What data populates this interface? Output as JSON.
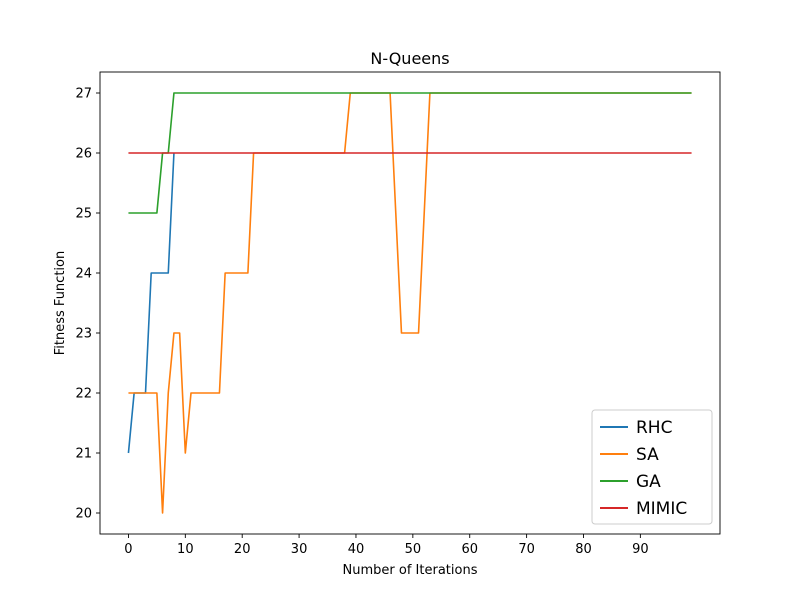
{
  "chart_data": {
    "type": "line",
    "title": "N-Queens",
    "xlabel": "Number of Iterations",
    "ylabel": "Fitness Function",
    "xlim": [
      -5,
      104
    ],
    "ylim": [
      19.65,
      27.35
    ],
    "xticks": [
      0,
      10,
      20,
      30,
      40,
      50,
      60,
      70,
      80,
      90
    ],
    "yticks": [
      20,
      21,
      22,
      23,
      24,
      25,
      26,
      27
    ],
    "grid": false,
    "legend_position": "lower-right",
    "series": [
      {
        "name": "RHC",
        "color": "#1f77b4",
        "points": [
          [
            0,
            21
          ],
          [
            1,
            22
          ],
          [
            2,
            22
          ],
          [
            3,
            22
          ],
          [
            4,
            24
          ],
          [
            5,
            24
          ],
          [
            6,
            24
          ],
          [
            7,
            24
          ],
          [
            8,
            26
          ]
        ]
      },
      {
        "name": "SA",
        "color": "#ff7f0e",
        "points": [
          [
            0,
            22
          ],
          [
            1,
            22
          ],
          [
            2,
            22
          ],
          [
            3,
            22
          ],
          [
            4,
            22
          ],
          [
            5,
            22
          ],
          [
            6,
            20
          ],
          [
            7,
            22
          ],
          [
            8,
            23
          ],
          [
            9,
            23
          ],
          [
            10,
            21
          ],
          [
            11,
            22
          ],
          [
            12,
            22
          ],
          [
            13,
            22
          ],
          [
            14,
            22
          ],
          [
            15,
            22
          ],
          [
            16,
            22
          ],
          [
            17,
            24
          ],
          [
            18,
            24
          ],
          [
            19,
            24
          ],
          [
            20,
            24
          ],
          [
            21,
            24
          ],
          [
            22,
            26
          ],
          [
            23,
            26
          ],
          [
            24,
            26
          ],
          [
            25,
            26
          ],
          [
            26,
            26
          ],
          [
            27,
            26
          ],
          [
            28,
            26
          ],
          [
            29,
            26
          ],
          [
            30,
            26
          ],
          [
            31,
            26
          ],
          [
            32,
            26
          ],
          [
            33,
            26
          ],
          [
            34,
            26
          ],
          [
            35,
            26
          ],
          [
            36,
            26
          ],
          [
            37,
            26
          ],
          [
            38,
            26
          ],
          [
            39,
            27
          ],
          [
            40,
            27
          ],
          [
            41,
            27
          ],
          [
            42,
            27
          ],
          [
            43,
            27
          ],
          [
            44,
            27
          ],
          [
            45,
            27
          ],
          [
            46,
            27
          ],
          [
            47,
            25
          ],
          [
            48,
            23
          ],
          [
            49,
            23
          ],
          [
            50,
            23
          ],
          [
            51,
            23
          ],
          [
            52,
            25
          ],
          [
            53,
            27
          ],
          [
            99,
            27
          ]
        ]
      },
      {
        "name": "GA",
        "color": "#2ca02c",
        "points": [
          [
            0,
            25
          ],
          [
            1,
            25
          ],
          [
            2,
            25
          ],
          [
            3,
            25
          ],
          [
            4,
            25
          ],
          [
            5,
            25
          ],
          [
            6,
            26
          ],
          [
            7,
            26
          ],
          [
            8,
            27
          ],
          [
            99,
            27
          ]
        ]
      },
      {
        "name": "MIMIC",
        "color": "#d62728",
        "points": [
          [
            0,
            26
          ],
          [
            99,
            26
          ]
        ]
      }
    ]
  }
}
